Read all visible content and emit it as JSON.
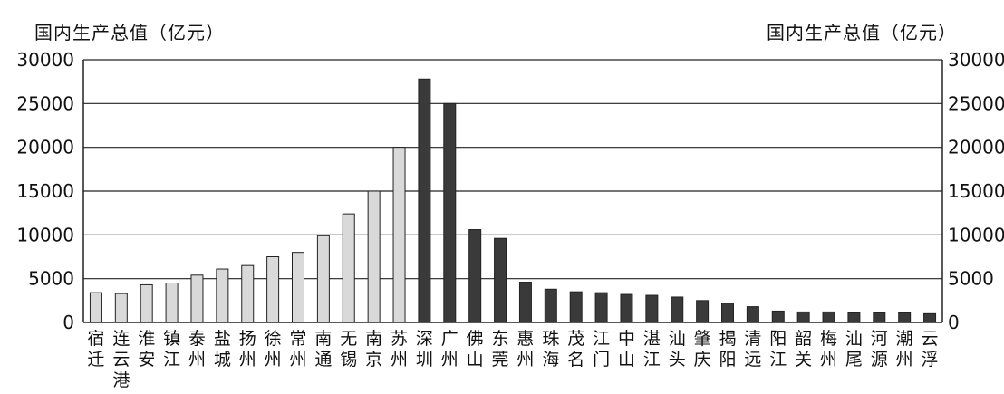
{
  "chart_data": {
    "type": "bar",
    "ylabel_left": "国内生产总值（亿元）",
    "ylabel_right": "国内生产总值（亿元）",
    "ylim": [
      0,
      30000
    ],
    "yticks": [
      "0",
      "5000",
      "10000",
      "15000",
      "20000",
      "25000",
      "30000"
    ],
    "grid": true,
    "categories": [
      "宿迁",
      "连云港",
      "淮安",
      "镇江",
      "泰州",
      "盐城",
      "扬州",
      "徐州",
      "常州",
      "南通",
      "无锡",
      "南京",
      "苏州",
      "深圳",
      "广州",
      "佛山",
      "东莞",
      "惠州",
      "珠海",
      "茂名",
      "江门",
      "中山",
      "湛江",
      "汕头",
      "肇庆",
      "揭阳",
      "清远",
      "阳江",
      "韶关",
      "梅州",
      "汕尾",
      "河源",
      "潮州",
      "云浮"
    ],
    "category_labels": [
      "宿\n迁",
      "连\n云\n港",
      "淮\n安",
      "镇\n江",
      "泰\n州",
      "盐\n城",
      "扬\n州",
      "徐\n州",
      "常\n州",
      "南\n通",
      "无\n锡",
      "南\n京",
      "苏\n州",
      "深\n圳",
      "广\n州",
      "佛\n山",
      "东\n莞",
      "惠\n州",
      "珠\n海",
      "茂\n名",
      "江\n门",
      "中\n山",
      "湛\n江",
      "汕\n头",
      "肇\n庆",
      "揭\n阳",
      "清\n远",
      "阳\n江",
      "韶\n关",
      "梅\n州",
      "汕\n尾",
      "河\n源",
      "潮\n州",
      "云\n浮"
    ],
    "values": [
      3400,
      3300,
      4300,
      4500,
      5400,
      6100,
      6500,
      7500,
      8000,
      9900,
      12400,
      15000,
      20000,
      27800,
      25000,
      10600,
      9600,
      4600,
      3800,
      3500,
      3400,
      3200,
      3100,
      2900,
      2500,
      2200,
      1800,
      1300,
      1200,
      1200,
      1100,
      1100,
      1100,
      1000
    ],
    "groups": [
      "light",
      "light",
      "light",
      "light",
      "light",
      "light",
      "light",
      "light",
      "light",
      "light",
      "light",
      "light",
      "light",
      "dark",
      "dark",
      "dark",
      "dark",
      "dark",
      "dark",
      "dark",
      "dark",
      "dark",
      "dark",
      "dark",
      "dark",
      "dark",
      "dark",
      "dark",
      "dark",
      "dark",
      "dark",
      "dark",
      "dark",
      "dark"
    ],
    "colors": {
      "light": "#d9d9d9",
      "dark": "#3a3a3a",
      "axis": "#222222",
      "grid": "#222222"
    }
  }
}
